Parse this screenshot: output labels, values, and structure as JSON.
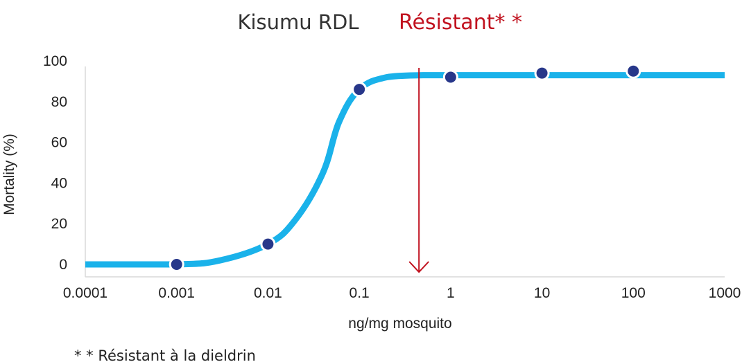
{
  "chart_data": {
    "type": "line",
    "title": "Kisumu RDL",
    "title_annotation": "Résistant* *",
    "xlabel": "ng/mg mosquito",
    "ylabel": "Mortality (%)",
    "x_scale": "log",
    "xlim": [
      0.0001,
      1000
    ],
    "ylim": [
      0,
      100
    ],
    "x_ticks": [
      "0.0001",
      "0.001",
      "0.01",
      "0.1",
      "1",
      "10",
      "100",
      "1000"
    ],
    "y_ticks": [
      "0",
      "20",
      "40",
      "60",
      "80",
      "100"
    ],
    "grid": false,
    "series": [
      {
        "kind": "fitted-curve",
        "color": "#1ab2ea",
        "x": [
          0.0001,
          0.001,
          0.003,
          0.01,
          0.02,
          0.04,
          0.06,
          0.1,
          0.2,
          0.5,
          1,
          10,
          100,
          1000
        ],
        "y": [
          0,
          0,
          2,
          10,
          22,
          45,
          70,
          86,
          92,
          93,
          93,
          93,
          93,
          93
        ]
      },
      {
        "kind": "observed-points",
        "color": "#27378a",
        "x": [
          0.001,
          0.01,
          0.1,
          1,
          10,
          100
        ],
        "y": [
          0,
          10,
          86,
          92,
          94,
          95
        ]
      }
    ],
    "annotations": [
      {
        "kind": "arrow",
        "x": 0.45,
        "color": "#c1121f"
      }
    ],
    "footnote": "* * Résistant à la dieldrin"
  }
}
